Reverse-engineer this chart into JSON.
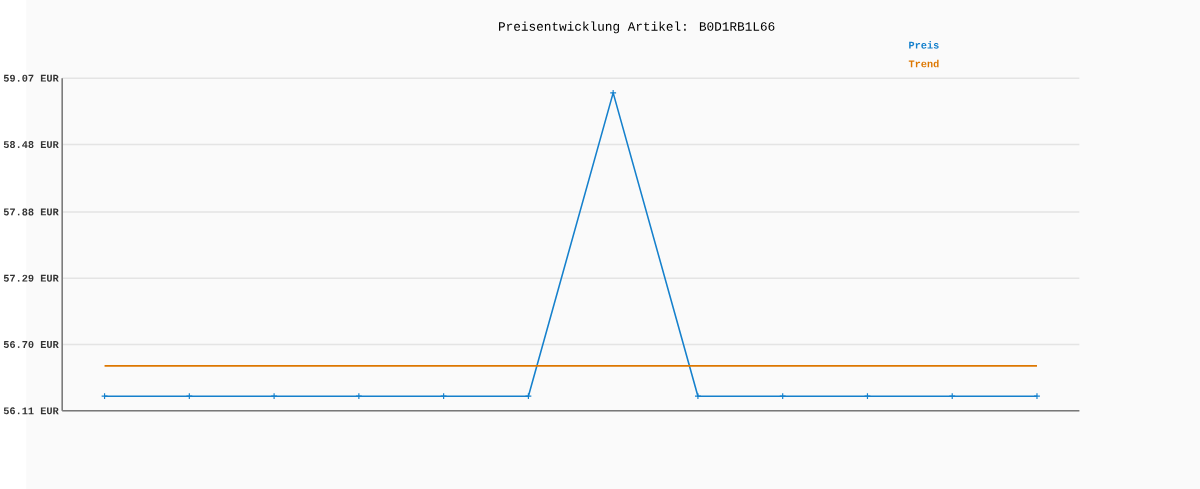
{
  "chart_data": {
    "type": "line",
    "title": "Preisentwicklung Artikel: B0D1RB1L66",
    "categories": [
      null,
      null,
      null,
      null,
      null,
      null,
      null,
      null,
      null,
      null,
      null,
      null
    ],
    "series": [
      {
        "name": "Preis",
        "color": "#1580cc",
        "marker": "cross",
        "values": [
          56.24,
          56.24,
          56.24,
          56.24,
          56.24,
          56.24,
          58.94,
          56.24,
          56.24,
          56.24,
          56.24,
          56.24
        ]
      },
      {
        "name": "Trend",
        "color": "#dd7700",
        "marker": "none",
        "values": [
          56.51,
          56.51,
          56.51,
          56.51,
          56.51,
          56.51,
          56.51,
          56.51,
          56.51,
          56.51,
          56.51,
          56.51
        ]
      }
    ],
    "ylim": [
      56.11,
      59.07
    ],
    "yticks": [
      {
        "value": 56.11,
        "label": "56.11 EUR"
      },
      {
        "value": 56.7,
        "label": "56.70 EUR"
      },
      {
        "value": 57.29,
        "label": "57.29 EUR"
      },
      {
        "value": 57.88,
        "label": "57.88 EUR"
      },
      {
        "value": 58.48,
        "label": "58.48 EUR"
      },
      {
        "value": 59.07,
        "label": "59.07 EUR"
      }
    ],
    "grid": "y",
    "legend": "top right",
    "line_style": "solid"
  }
}
